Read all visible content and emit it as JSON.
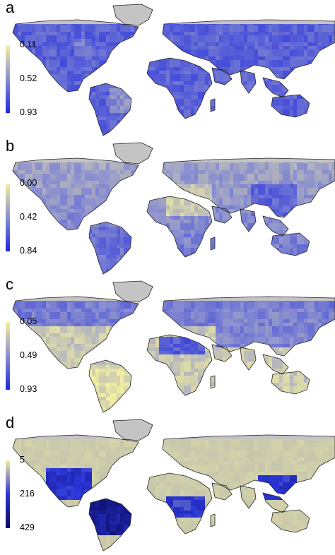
{
  "panels": [
    {
      "letter": "a",
      "ticks": [
        "0.11",
        "0.52",
        "0.93"
      ],
      "colors": [
        "#f4f0a0",
        "#8a8fcf",
        "#1e28e0"
      ],
      "style": "blue_dominant"
    },
    {
      "letter": "b",
      "ticks": [
        "0.00",
        "0.42",
        "0.84"
      ],
      "colors": [
        "#f4f0a0",
        "#8a8fcf",
        "#1e28e0"
      ],
      "style": "mixed"
    },
    {
      "letter": "c",
      "ticks": [
        "0.05",
        "0.49",
        "0.93"
      ],
      "colors": [
        "#f4f0a0",
        "#8a8fcf",
        "#1e28e0"
      ],
      "style": "yellow_north_blue"
    },
    {
      "letter": "d",
      "ticks": [
        "5",
        "216",
        "429"
      ],
      "colors": [
        "#f4f0a0",
        "#2a36d8",
        "#0a0a60"
      ],
      "style": "tropics_dark"
    }
  ],
  "palette": {
    "land_grey": "#c4c4c4",
    "outline": "#222222",
    "background": "#ffffff"
  }
}
